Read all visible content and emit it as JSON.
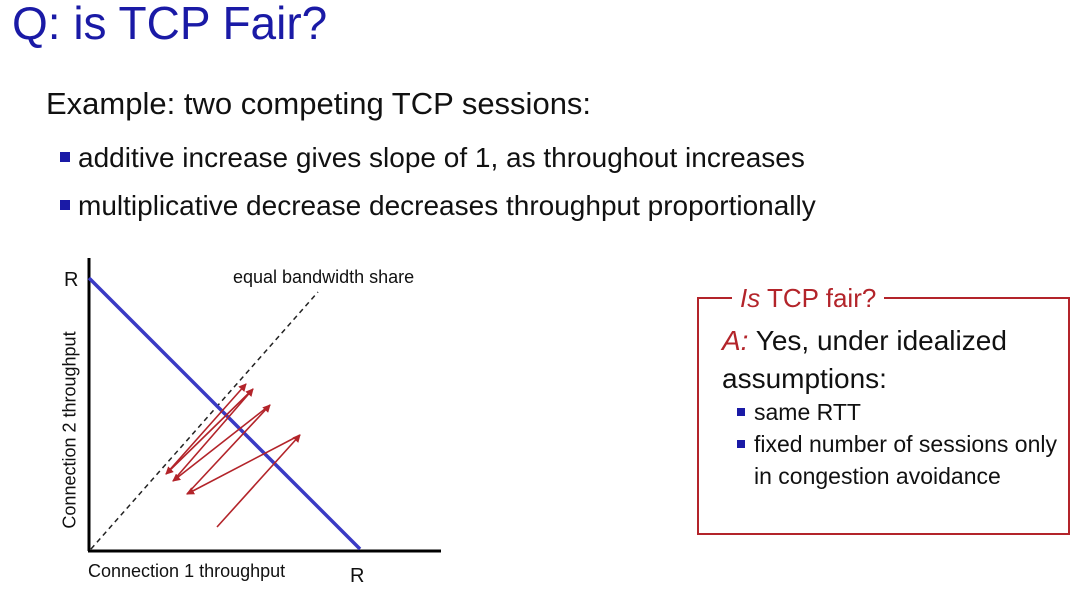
{
  "slide": {
    "title": "Q: is TCP Fair?",
    "subtitle": "Example: two competing TCP sessions:",
    "bullets": [
      "additive increase gives slope of 1, as throughout increases",
      "multiplicative decrease decreases throughput proportionally"
    ]
  },
  "diagram": {
    "y_axis_label": "Connection 2 throughput",
    "x_axis_label": "Connection 1 throughput",
    "x_max_label": "R",
    "y_max_label": "R",
    "equal_share_label": "equal bandwidth share",
    "colors": {
      "capacity_line": "#3a3ac4",
      "trajectory": "#b3242a",
      "axes": "#000000"
    }
  },
  "fairness_box": {
    "title_italic": "Is",
    "title_rest": " TCP fair?",
    "answer_prefix": "A:",
    "answer_text": " Yes, under idealized assumptions:",
    "points": [
      "same RTT",
      "fixed number of sessions only in congestion avoidance"
    ]
  }
}
